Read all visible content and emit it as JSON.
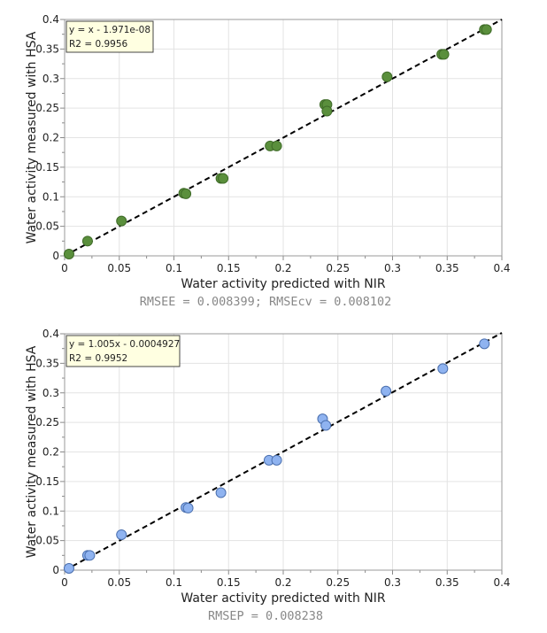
{
  "chart_data": [
    {
      "type": "scatter",
      "xlabel": "Water activity predicted with NIR",
      "ylabel": "Water activity measured with HSA",
      "xlim": [
        0,
        0.4
      ],
      "ylim": [
        0,
        0.4
      ],
      "xticks": [
        "0",
        "0.05",
        "0.1",
        "0.15",
        "0.2",
        "0.25",
        "0.3",
        "0.35",
        "0.4"
      ],
      "yticks": [
        "0",
        "0.05",
        "0.1",
        "0.15",
        "0.2",
        "0.25",
        "0.3",
        "0.35",
        "0.4"
      ],
      "equation": "y = x - 1.971e-08",
      "r2": "R2 = 0.9956",
      "footer": "RMSEE = 0.008399; RMSEcv = 0.008102",
      "marker_color": "#5a8f3c",
      "marker_edge": "#3f6b28",
      "x": [
        0.004,
        0.021,
        0.052,
        0.109,
        0.111,
        0.143,
        0.145,
        0.188,
        0.194,
        0.238,
        0.24,
        0.24,
        0.295,
        0.345,
        0.347,
        0.384,
        0.386
      ],
      "y": [
        0.003,
        0.025,
        0.059,
        0.106,
        0.105,
        0.131,
        0.131,
        0.186,
        0.186,
        0.256,
        0.256,
        0.245,
        0.303,
        0.341,
        0.341,
        0.383,
        0.383
      ],
      "fit": {
        "slope": 1.0,
        "intercept": 0
      }
    },
    {
      "type": "scatter",
      "xlabel": "Water activity predicted with NIR",
      "ylabel": "Water activity measured with HSA",
      "xlim": [
        0,
        0.4
      ],
      "ylim": [
        0,
        0.4
      ],
      "xticks": [
        "0",
        "0.05",
        "0.1",
        "0.15",
        "0.2",
        "0.25",
        "0.3",
        "0.35",
        "0.4"
      ],
      "yticks": [
        "0",
        "0.05",
        "0.1",
        "0.15",
        "0.2",
        "0.25",
        "0.3",
        "0.35",
        "0.4"
      ],
      "equation": "y = 1.005x - 0.0004927",
      "r2": "R2 = 0.9952",
      "footer": "RMSEP = 0.008238",
      "marker_color": "#8fb3f0",
      "marker_edge": "#4a6fae",
      "x": [
        0.004,
        0.021,
        0.023,
        0.052,
        0.111,
        0.113,
        0.143,
        0.187,
        0.194,
        0.236,
        0.239,
        0.294,
        0.346,
        0.384
      ],
      "y": [
        0.003,
        0.025,
        0.025,
        0.06,
        0.106,
        0.105,
        0.131,
        0.186,
        0.186,
        0.256,
        0.245,
        0.303,
        0.341,
        0.383
      ],
      "fit": {
        "slope": 1.005,
        "intercept": -0.0004927
      }
    }
  ]
}
